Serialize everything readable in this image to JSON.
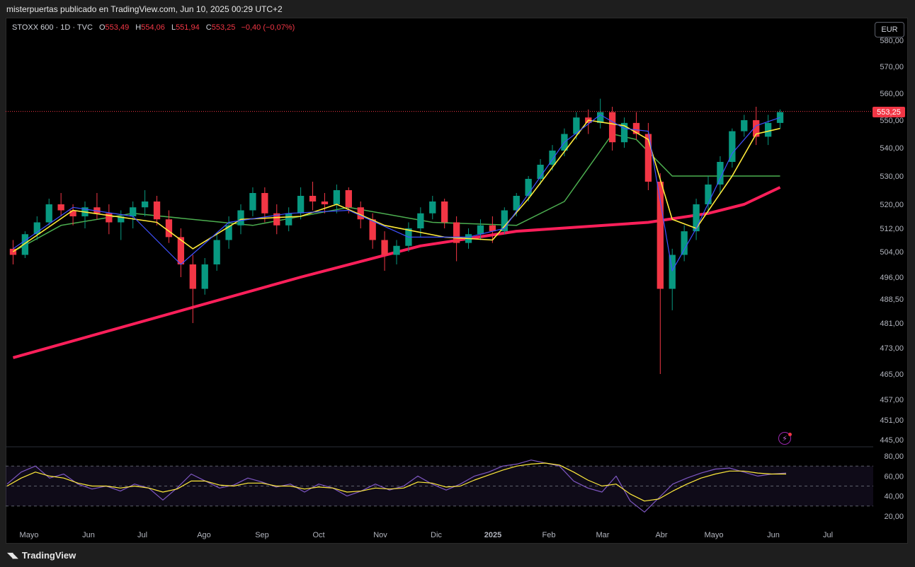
{
  "header": {
    "publisher_line": "misterpuertas publicado en TradingView.com, Jun 10, 2025 00:29 UTC+2"
  },
  "legend": {
    "symbol": "STOXX 600 · 1D · TVC",
    "open_label": "O",
    "open_value": "553,49",
    "high_label": "H",
    "high_value": "554,06",
    "low_label": "L",
    "low_value": "551,94",
    "close_label": "C",
    "close_value": "553,25",
    "change": "−0,40 (−0,07%)"
  },
  "currency_button": "EUR",
  "last_price_tag": "553,25",
  "footer": {
    "brand": "TradingView"
  },
  "colors": {
    "up": "#089981",
    "down": "#f23645",
    "ma_fast": "#3f51ff",
    "ma_yellow": "#ffeb3b",
    "ma_green": "#4caf50",
    "ma_long": "#ff1f5a",
    "rsi": "#7e57c2",
    "rsi_ma": "#ffeb3b"
  },
  "icons": {
    "alert": "lightning-bolt-icon",
    "logo": "tradingview-logo-icon"
  },
  "chart_data": [
    {
      "type": "candlestick",
      "name": "STOXX 600",
      "y_tick_labels": [
        "580,00",
        "570,00",
        "560,00",
        "550,00",
        "540,00",
        "530,00",
        "520,00",
        "512,00",
        "504,00",
        "496,00",
        "488,50",
        "481,00",
        "473,00",
        "465,00",
        "457,00",
        "451,00",
        "445,00"
      ],
      "x_tick_labels": [
        "Mayo",
        "Jun",
        "Jul",
        "Ago",
        "Sep",
        "Oct",
        "Nov",
        "Dic",
        "2025",
        "Feb",
        "Mar",
        "Abr",
        "Mayo",
        "Jun",
        "Jul"
      ],
      "ylim": [
        443,
        582
      ],
      "last_price": 553.25,
      "weekly_ohlc": [
        [
          505,
          508,
          500,
          503
        ],
        [
          503,
          511,
          502,
          510
        ],
        [
          510,
          516,
          508,
          514
        ],
        [
          514,
          522,
          513,
          520
        ],
        [
          520,
          524,
          516,
          518
        ],
        [
          518,
          520,
          513,
          516
        ],
        [
          516,
          521,
          512,
          519
        ],
        [
          519,
          524,
          515,
          517
        ],
        [
          517,
          520,
          510,
          514
        ],
        [
          514,
          518,
          508,
          516
        ],
        [
          516,
          521,
          512,
          519
        ],
        [
          519,
          525,
          516,
          521
        ],
        [
          521,
          523,
          513,
          515
        ],
        [
          515,
          518,
          507,
          509
        ],
        [
          509,
          512,
          496,
          500
        ],
        [
          500,
          503,
          481,
          492
        ],
        [
          492,
          502,
          490,
          500
        ],
        [
          500,
          510,
          498,
          508
        ],
        [
          508,
          516,
          505,
          513
        ],
        [
          513,
          520,
          510,
          518
        ],
        [
          518,
          526,
          516,
          524
        ],
        [
          524,
          526,
          514,
          517
        ],
        [
          517,
          520,
          510,
          513
        ],
        [
          513,
          519,
          511,
          517
        ],
        [
          517,
          526,
          515,
          523
        ],
        [
          523,
          528,
          518,
          521
        ],
        [
          521,
          524,
          517,
          520
        ],
        [
          520,
          527,
          517,
          525
        ],
        [
          525,
          526,
          517,
          519
        ],
        [
          519,
          521,
          512,
          515
        ],
        [
          515,
          517,
          505,
          508
        ],
        [
          508,
          511,
          498,
          503
        ],
        [
          503,
          508,
          500,
          506
        ],
        [
          506,
          514,
          504,
          512
        ],
        [
          512,
          519,
          509,
          517
        ],
        [
          517,
          523,
          515,
          521
        ],
        [
          521,
          522,
          512,
          514
        ],
        [
          514,
          516,
          501,
          507
        ],
        [
          507,
          512,
          505,
          510
        ],
        [
          510,
          515,
          508,
          513
        ],
        [
          513,
          516,
          507,
          511
        ],
        [
          511,
          519,
          510,
          518
        ],
        [
          518,
          524,
          516,
          523
        ],
        [
          523,
          530,
          521,
          529
        ],
        [
          529,
          536,
          527,
          534
        ],
        [
          534,
          541,
          532,
          539
        ],
        [
          539,
          547,
          537,
          545
        ],
        [
          545,
          553,
          543,
          551
        ],
        [
          551,
          554,
          545,
          549
        ],
        [
          549,
          558,
          547,
          553
        ],
        [
          553,
          555,
          539,
          542
        ],
        [
          542,
          551,
          540,
          549
        ],
        [
          549,
          553,
          543,
          545
        ],
        [
          545,
          549,
          525,
          528
        ],
        [
          528,
          531,
          465,
          492
        ],
        [
          492,
          505,
          485,
          503
        ],
        [
          503,
          513,
          501,
          511
        ],
        [
          511,
          522,
          508,
          520
        ],
        [
          520,
          530,
          517,
          527
        ],
        [
          527,
          537,
          524,
          535
        ],
        [
          535,
          547,
          533,
          546
        ],
        [
          546,
          552,
          544,
          550
        ],
        [
          550,
          555,
          541,
          544
        ],
        [
          544,
          552,
          541,
          549
        ],
        [
          549,
          554,
          547,
          553
        ]
      ],
      "ma_200": [
        [
          0,
          470
        ],
        [
          24,
          496
        ],
        [
          34,
          506
        ],
        [
          42,
          511
        ],
        [
          53,
          514
        ],
        [
          58,
          517
        ],
        [
          61,
          520
        ],
        [
          64,
          526
        ]
      ],
      "ma_50": [
        [
          0,
          504
        ],
        [
          4,
          513
        ],
        [
          10,
          517
        ],
        [
          20,
          513
        ],
        [
          28,
          519
        ],
        [
          35,
          514
        ],
        [
          42,
          513
        ],
        [
          46,
          521
        ],
        [
          50,
          545
        ],
        [
          52,
          543
        ],
        [
          55,
          530
        ],
        [
          58,
          530
        ],
        [
          64,
          530
        ]
      ],
      "ma_20": [
        [
          0,
          504
        ],
        [
          5,
          518
        ],
        [
          12,
          514
        ],
        [
          15,
          505
        ],
        [
          19,
          515
        ],
        [
          24,
          516
        ],
        [
          27,
          520
        ],
        [
          31,
          513
        ],
        [
          36,
          509
        ],
        [
          40,
          508
        ],
        [
          43,
          522
        ],
        [
          48,
          550
        ],
        [
          51,
          548
        ],
        [
          53,
          543
        ],
        [
          55,
          515
        ],
        [
          57,
          512
        ],
        [
          60,
          530
        ],
        [
          62,
          545
        ],
        [
          64,
          547
        ]
      ],
      "ma_10": [
        [
          0,
          505
        ],
        [
          5,
          519
        ],
        [
          10,
          516
        ],
        [
          14,
          500
        ],
        [
          18,
          514
        ],
        [
          23,
          517
        ],
        [
          28,
          518
        ],
        [
          33,
          509
        ],
        [
          38,
          509
        ],
        [
          41,
          512
        ],
        [
          46,
          542
        ],
        [
          49,
          552
        ],
        [
          51,
          547
        ],
        [
          53,
          546
        ],
        [
          55,
          498
        ],
        [
          57,
          512
        ],
        [
          60,
          538
        ],
        [
          62,
          548
        ],
        [
          64,
          551
        ]
      ]
    },
    {
      "type": "line",
      "name": "RSI",
      "y_tick_labels": [
        "80,00",
        "60,00",
        "40,00",
        "20,00"
      ],
      "ylim": [
        15,
        85
      ],
      "bands": [
        70,
        50,
        30
      ],
      "rsi": [
        52,
        64,
        70,
        58,
        62,
        52,
        47,
        50,
        45,
        52,
        48,
        36,
        48,
        62,
        55,
        48,
        51,
        58,
        54,
        49,
        52,
        44,
        52,
        48,
        40,
        45,
        52,
        46,
        50,
        60,
        52,
        46,
        52,
        60,
        64,
        70,
        72,
        76,
        73,
        70,
        55,
        48,
        44,
        60,
        35,
        24,
        38,
        52,
        58,
        63,
        67,
        68,
        64,
        60,
        62,
        63
      ],
      "rsi_ma": [
        50,
        58,
        64,
        60,
        58,
        53,
        50,
        50,
        48,
        50,
        48,
        44,
        47,
        55,
        55,
        51,
        50,
        53,
        53,
        50,
        50,
        47,
        49,
        48,
        44,
        45,
        48,
        47,
        48,
        54,
        53,
        49,
        50,
        56,
        61,
        66,
        70,
        72,
        73,
        71,
        64,
        56,
        50,
        52,
        42,
        35,
        37,
        45,
        52,
        58,
        62,
        65,
        65,
        63,
        62,
        62
      ]
    }
  ]
}
